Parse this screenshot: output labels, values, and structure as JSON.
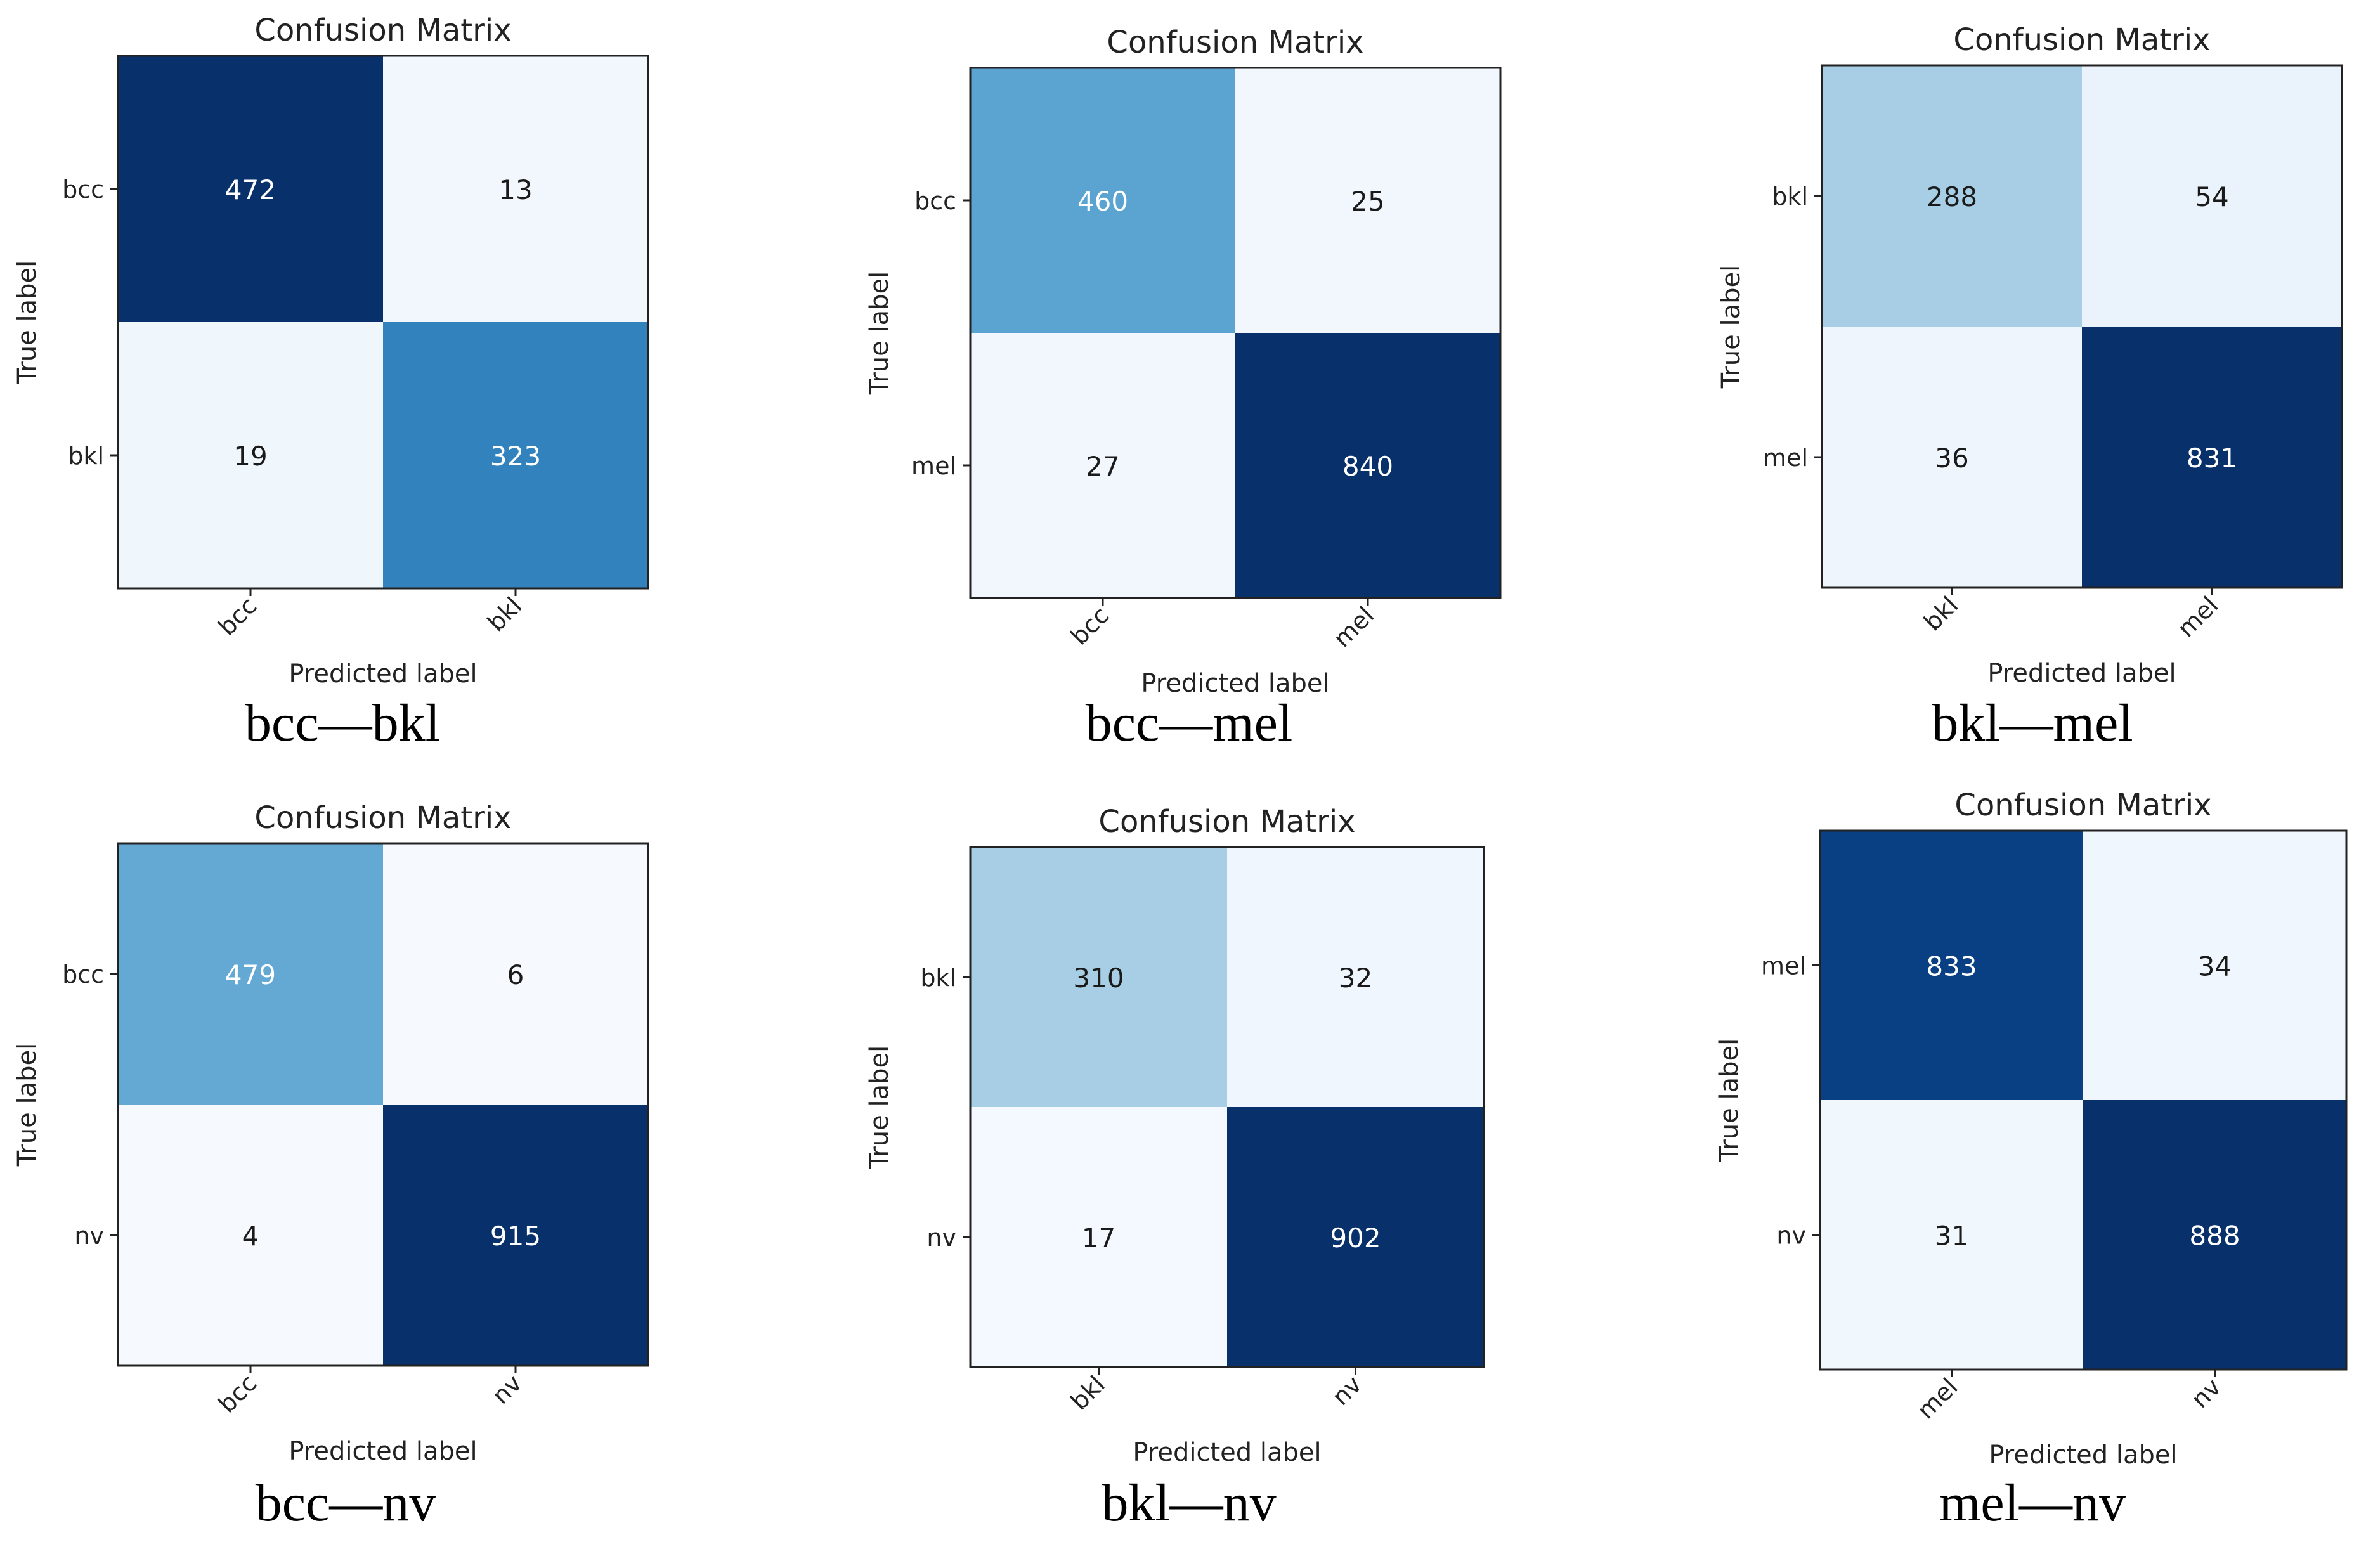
{
  "chart_data": [
    {
      "type": "heatmap",
      "title": "Confusion Matrix",
      "xlabel": "Predicted label",
      "ylabel": "True label",
      "classes": [
        "bcc",
        "bkl"
      ],
      "matrix": [
        [
          472,
          13
        ],
        [
          19,
          323
        ]
      ],
      "caption": "bcc—bkl"
    },
    {
      "type": "heatmap",
      "title": "Confusion Matrix",
      "xlabel": "Predicted label",
      "ylabel": "True label",
      "classes": [
        "bcc",
        "mel"
      ],
      "matrix": [
        [
          460,
          25
        ],
        [
          27,
          840
        ]
      ],
      "caption": "bcc—mel"
    },
    {
      "type": "heatmap",
      "title": "Confusion Matrix",
      "xlabel": "Predicted label",
      "ylabel": "True label",
      "classes": [
        "bkl",
        "mel"
      ],
      "matrix": [
        [
          288,
          54
        ],
        [
          36,
          831
        ]
      ],
      "caption": "bkl—mel"
    },
    {
      "type": "heatmap",
      "title": "Confusion Matrix",
      "xlabel": "Predicted label",
      "ylabel": "True label",
      "classes": [
        "bcc",
        "nv"
      ],
      "matrix": [
        [
          479,
          6
        ],
        [
          4,
          915
        ]
      ],
      "caption": "bcc—nv"
    },
    {
      "type": "heatmap",
      "title": "Confusion Matrix",
      "xlabel": "Predicted label",
      "ylabel": "True label",
      "classes": [
        "bkl",
        "nv"
      ],
      "matrix": [
        [
          310,
          32
        ],
        [
          17,
          902
        ]
      ],
      "caption": "bkl—nv"
    },
    {
      "type": "heatmap",
      "title": "Confusion Matrix",
      "xlabel": "Predicted label",
      "ylabel": "True label",
      "classes": [
        "mel",
        "nv"
      ],
      "matrix": [
        [
          833,
          34
        ],
        [
          31,
          888
        ]
      ],
      "caption": "mel—nv"
    }
  ],
  "colors": {
    "colormap": [
      "#f7fbff",
      "#deebf7",
      "#c6dbef",
      "#9ecae1",
      "#6baed6",
      "#4292c6",
      "#2171b5",
      "#08519c",
      "#08306b"
    ],
    "dark_text": "#1a1a1a",
    "light_text": "#ffffff",
    "frame": "#222222"
  }
}
